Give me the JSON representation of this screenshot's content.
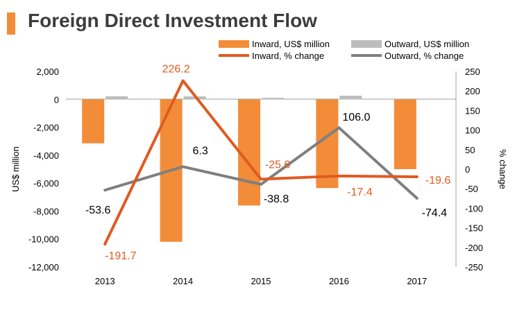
{
  "header": {
    "title": "Foreign Direct Investment Flow"
  },
  "colors": {
    "accent": "#f28c38",
    "inward": "#f28c38",
    "outward": "#bdbdbd",
    "inward_line": "#e05a1f",
    "outward_line": "#7f7f7f"
  },
  "chart_data": {
    "type": "bar",
    "title": "Foreign Direct Investment Flow",
    "categories": [
      "2013",
      "2014",
      "2015",
      "2016",
      "2017"
    ],
    "ylabel": "US$ million",
    "y2label": "% change",
    "ylim": [
      -12000,
      2000
    ],
    "y2lim": [
      -250,
      250
    ],
    "yticks": [
      "2,000",
      "0",
      "-2,000",
      "-4,000",
      "-6,000",
      "-8,000",
      "-10,000",
      "-12,000"
    ],
    "ytick_values": [
      2000,
      0,
      -2000,
      -4000,
      -6000,
      -8000,
      -10000,
      -12000
    ],
    "y2ticks": [
      "250",
      "200",
      "150",
      "100",
      "50",
      "0",
      "-50",
      "-100",
      "-150",
      "-200",
      "-250"
    ],
    "y2tick_values": [
      250,
      200,
      150,
      100,
      50,
      0,
      -50,
      -100,
      -150,
      -200,
      -250
    ],
    "series": [
      {
        "name": "Inward, US$ million",
        "kind": "bar",
        "axis": "left",
        "values": [
          -3150,
          -10200,
          -7600,
          -6350,
          -5000
        ]
      },
      {
        "name": "Outward, US$ million",
        "kind": "bar",
        "axis": "left",
        "values": [
          220,
          210,
          110,
          260,
          0
        ]
      },
      {
        "name": "Inward, % change",
        "kind": "line",
        "axis": "right",
        "values": [
          -191.7,
          226.2,
          -25.6,
          -17.4,
          -19.6
        ]
      },
      {
        "name": "Outward, % change",
        "kind": "line",
        "axis": "right",
        "values": [
          -53.6,
          6.3,
          -38.8,
          106.0,
          -74.4
        ]
      }
    ],
    "inward_labels": [
      "-191.7",
      "226.2",
      "-25.6",
      "-17.4",
      "-19.6"
    ],
    "outward_labels": [
      "-53.6",
      "6.3",
      "-38.8",
      "106.0",
      "-74.4"
    ],
    "legend_position": "top-right"
  }
}
